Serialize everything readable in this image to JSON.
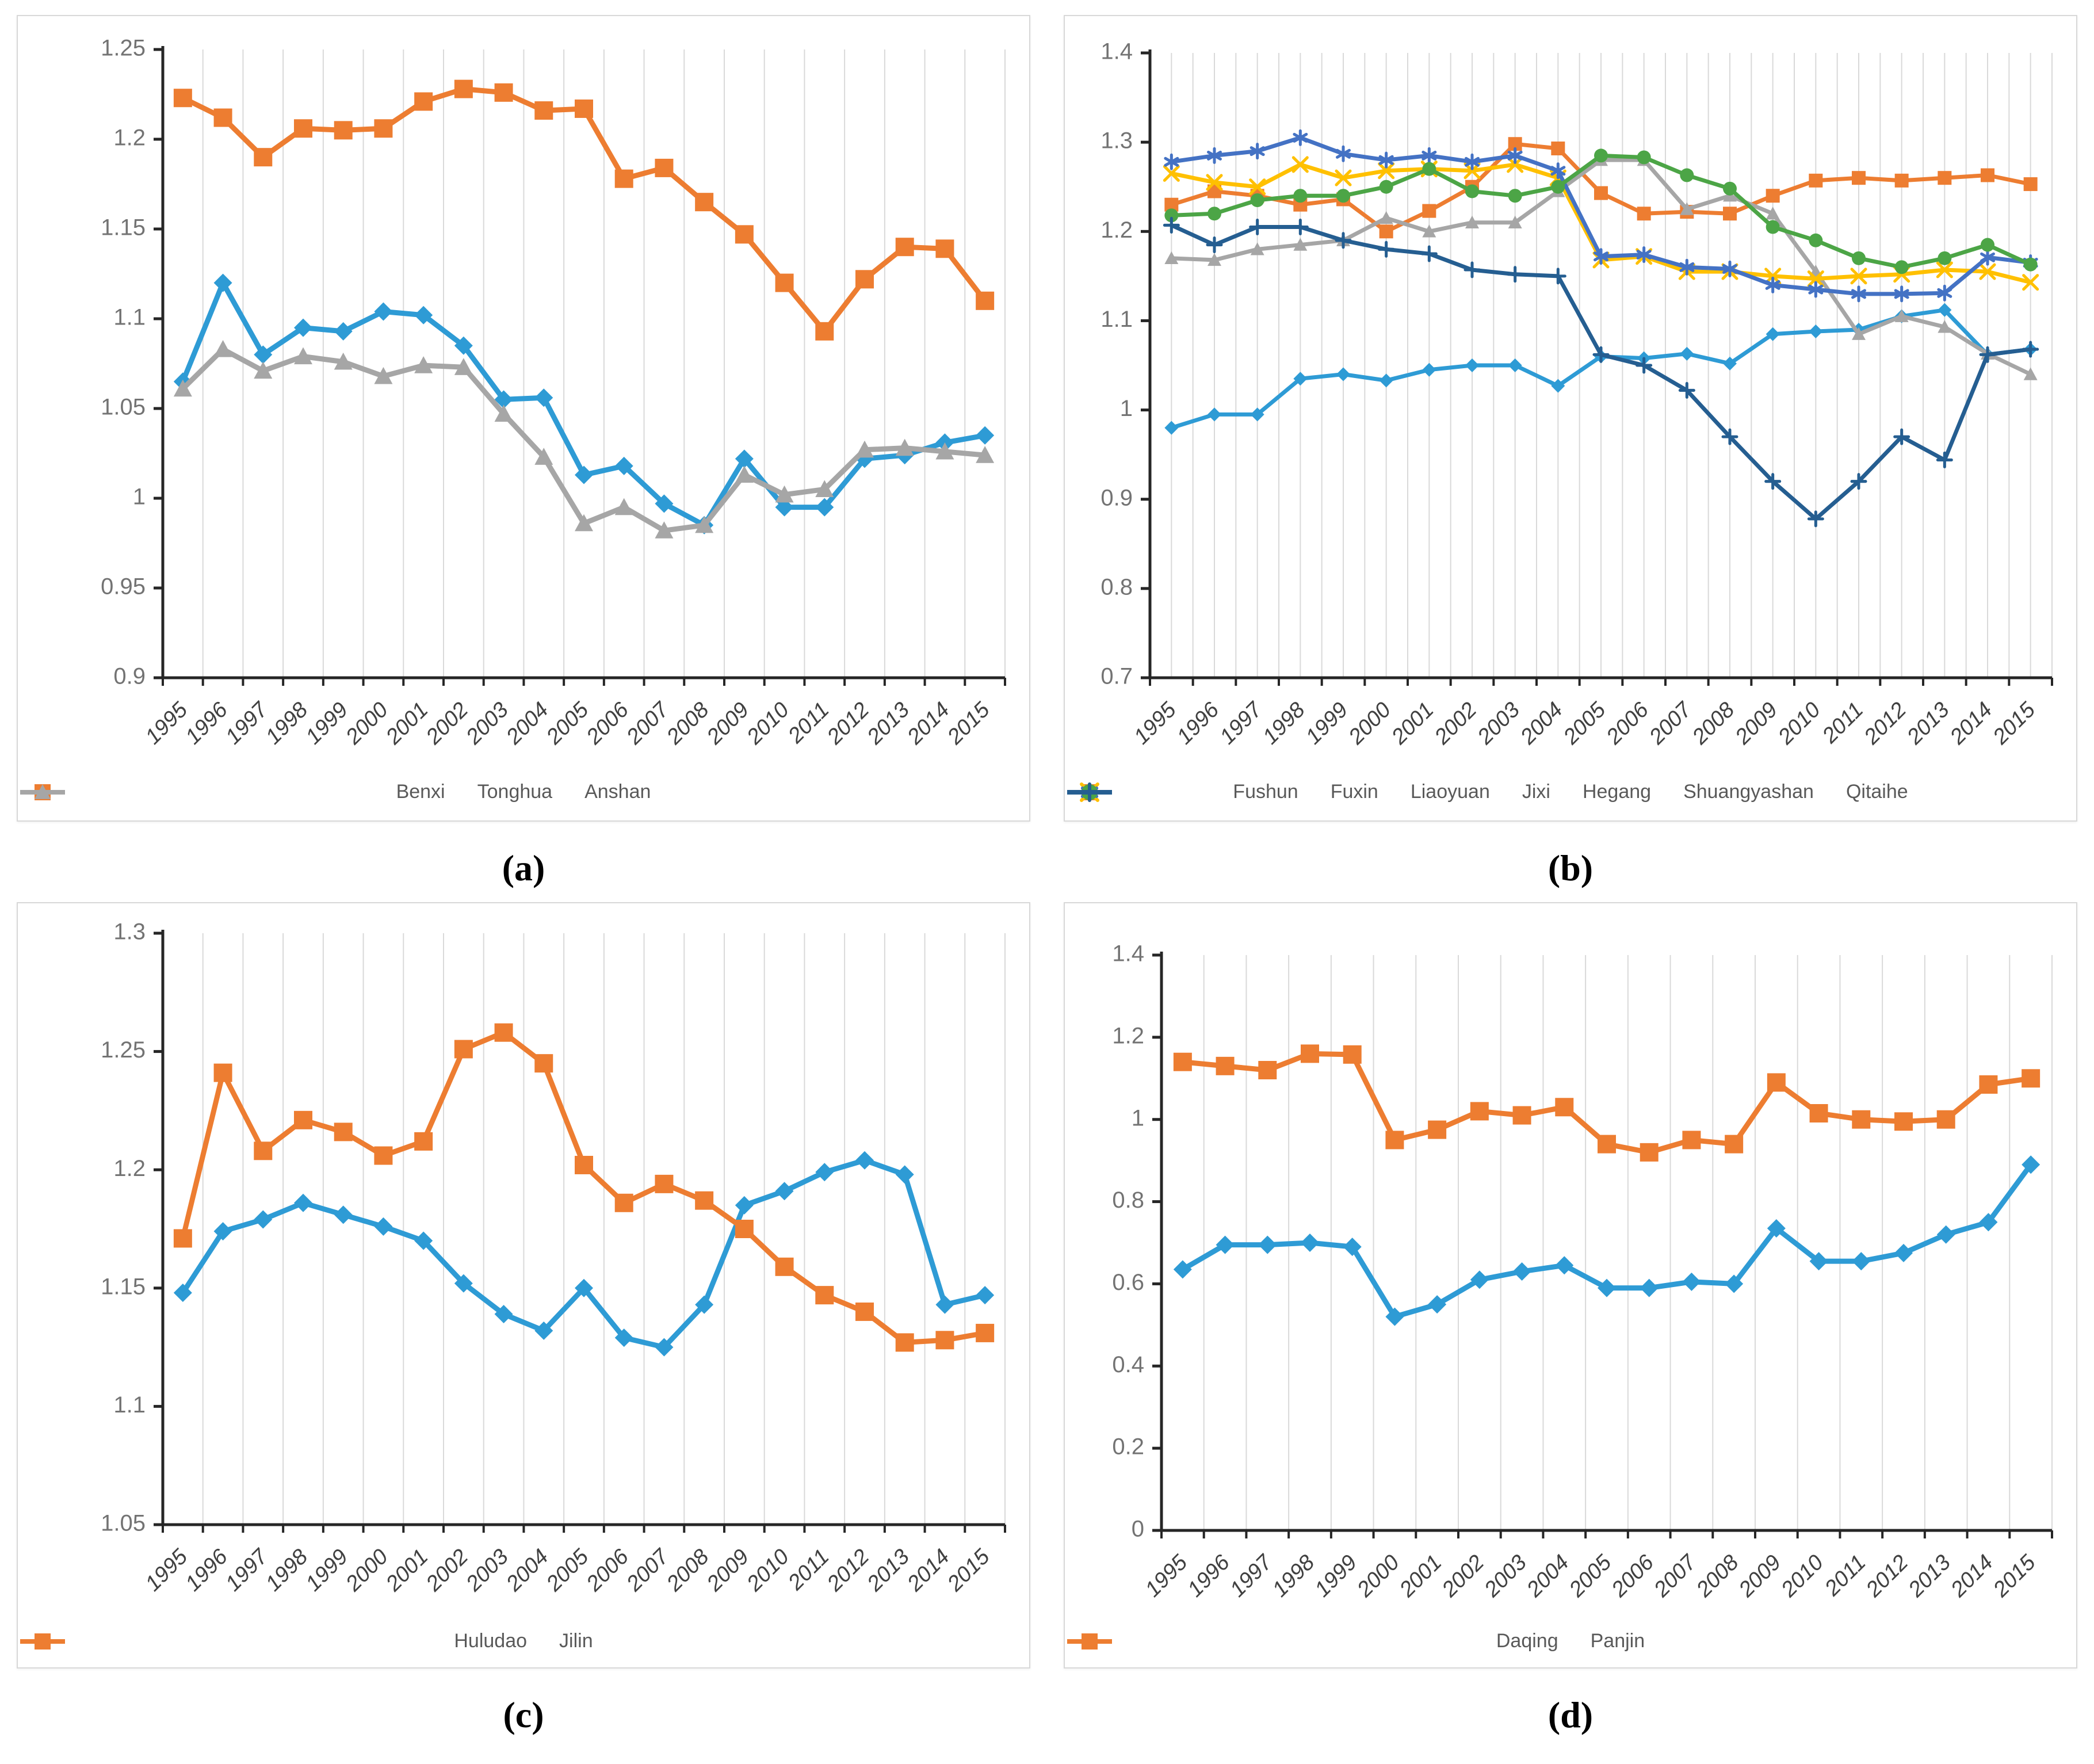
{
  "figure": {
    "captions": {
      "a": "(a)",
      "b": "(b)",
      "c": "(c)",
      "d": "(d)"
    }
  },
  "colors": {
    "bright_blue": "#2E9BD5",
    "orange": "#ED7D31",
    "gray": "#A6A6A6",
    "yellow": "#FFC000",
    "medium_blue": "#4472C4",
    "green": "#4CA546",
    "navy": "#255E91",
    "gridline": "#D9D9D9",
    "axis": "#262626"
  },
  "chart_data": [
    {
      "id": "a",
      "caption": "(a)",
      "type": "line",
      "categories": [
        "1995",
        "1996",
        "1997",
        "1998",
        "1999",
        "2000",
        "2001",
        "2002",
        "2003",
        "2004",
        "2005",
        "2006",
        "2007",
        "2008",
        "2009",
        "2010",
        "2011",
        "2012",
        "2013",
        "2014",
        "2015"
      ],
      "ylim": [
        0.9,
        1.25
      ],
      "yticks": [
        {
          "value": 1.25,
          "label": "1.25"
        },
        {
          "value": 1.2,
          "label": "1.2"
        },
        {
          "value": 1.15,
          "label": "1.15"
        },
        {
          "value": 1.1,
          "label": "1.1"
        },
        {
          "value": 1.05,
          "label": "1.05"
        },
        {
          "value": 1.0,
          "label": "1"
        },
        {
          "value": 0.95,
          "label": "0.95"
        },
        {
          "value": 0.9,
          "label": "0.9"
        }
      ],
      "minor_x_gridlines": false,
      "legend_position": "bottom",
      "series": [
        {
          "name": "Benxi",
          "color": "bright_blue",
          "marker": "diamond",
          "values": [
            1.065,
            1.12,
            1.08,
            1.095,
            1.093,
            1.104,
            1.102,
            1.085,
            1.055,
            1.056,
            1.013,
            1.018,
            0.997,
            0.985,
            1.022,
            0.995,
            0.995,
            1.022,
            1.024,
            1.031,
            1.035
          ]
        },
        {
          "name": "Tonghua",
          "color": "orange",
          "marker": "square",
          "values": [
            1.223,
            1.212,
            1.19,
            1.206,
            1.205,
            1.206,
            1.221,
            1.228,
            1.226,
            1.216,
            1.217,
            1.178,
            1.184,
            1.165,
            1.147,
            1.12,
            1.093,
            1.122,
            1.14,
            1.139,
            1.11
          ]
        },
        {
          "name": "Anshan",
          "color": "gray",
          "marker": "triangle",
          "values": [
            1.061,
            1.083,
            1.071,
            1.079,
            1.076,
            1.068,
            1.074,
            1.073,
            1.047,
            1.023,
            0.986,
            0.995,
            0.982,
            0.985,
            1.013,
            1.002,
            1.005,
            1.027,
            1.028,
            1.026,
            1.024
          ]
        }
      ]
    },
    {
      "id": "b",
      "caption": "(b)",
      "type": "line",
      "categories": [
        "1995",
        "1996",
        "1997",
        "1998",
        "1999",
        "2000",
        "2001",
        "2002",
        "2003",
        "2004",
        "2005",
        "2006",
        "2007",
        "2008",
        "2009",
        "2010",
        "2011",
        "2012",
        "2013",
        "2014",
        "2015"
      ],
      "ylim": [
        0.7,
        1.4
      ],
      "yticks": [
        {
          "value": 1.4,
          "label": "1.4"
        },
        {
          "value": 1.3,
          "label": "1.3"
        },
        {
          "value": 1.2,
          "label": "1.2"
        },
        {
          "value": 1.1,
          "label": "1.1"
        },
        {
          "value": 1.0,
          "label": "1"
        },
        {
          "value": 0.9,
          "label": "0.9"
        },
        {
          "value": 0.8,
          "label": "0.8"
        },
        {
          "value": 0.7,
          "label": "0.7"
        }
      ],
      "minor_x_gridlines": true,
      "legend_position": "bottom",
      "series": [
        {
          "name": "Fushun",
          "color": "bright_blue",
          "marker": "diamond",
          "values": [
            0.98,
            0.995,
            0.995,
            1.035,
            1.04,
            1.033,
            1.045,
            1.05,
            1.05,
            1.027,
            1.06,
            1.058,
            1.063,
            1.052,
            1.085,
            1.088,
            1.09,
            1.105,
            1.112,
            1.062,
            1.068
          ]
        },
        {
          "name": "Fuxin",
          "color": "orange",
          "marker": "square",
          "values": [
            1.23,
            1.245,
            1.24,
            1.23,
            1.236,
            1.2,
            1.223,
            1.25,
            1.298,
            1.293,
            1.243,
            1.22,
            1.222,
            1.22,
            1.24,
            1.257,
            1.26,
            1.257,
            1.26,
            1.263,
            1.253
          ]
        },
        {
          "name": "Liaoyuan",
          "color": "gray",
          "marker": "triangle",
          "values": [
            1.17,
            1.168,
            1.18,
            1.185,
            1.19,
            1.215,
            1.2,
            1.21,
            1.21,
            1.245,
            1.28,
            1.28,
            1.225,
            1.24,
            1.22,
            1.155,
            1.085,
            1.105,
            1.093,
            1.063,
            1.04
          ]
        },
        {
          "name": "Jixi",
          "color": "yellow",
          "marker": "x",
          "values": [
            1.265,
            1.255,
            1.25,
            1.275,
            1.26,
            1.268,
            1.27,
            1.268,
            1.275,
            1.26,
            1.168,
            1.172,
            1.155,
            1.155,
            1.15,
            1.147,
            1.15,
            1.152,
            1.157,
            1.155,
            1.143
          ]
        },
        {
          "name": "Hegang",
          "color": "medium_blue",
          "marker": "asterisk",
          "values": [
            1.278,
            1.285,
            1.29,
            1.305,
            1.287,
            1.28,
            1.285,
            1.278,
            1.285,
            1.268,
            1.172,
            1.174,
            1.16,
            1.158,
            1.14,
            1.135,
            1.13,
            1.13,
            1.131,
            1.171,
            1.165
          ]
        },
        {
          "name": "Shuangyashan",
          "color": "green",
          "marker": "circle",
          "values": [
            1.218,
            1.22,
            1.235,
            1.24,
            1.24,
            1.25,
            1.27,
            1.245,
            1.24,
            1.25,
            1.285,
            1.283,
            1.263,
            1.248,
            1.205,
            1.19,
            1.17,
            1.16,
            1.17,
            1.185,
            1.163
          ]
        },
        {
          "name": "Qitaihe",
          "color": "navy",
          "marker": "plus",
          "values": [
            1.207,
            1.185,
            1.205,
            1.205,
            1.19,
            1.18,
            1.175,
            1.157,
            1.152,
            1.15,
            1.062,
            1.05,
            1.022,
            0.97,
            0.92,
            0.878,
            0.92,
            0.97,
            0.944,
            1.062,
            1.068
          ]
        }
      ]
    },
    {
      "id": "c",
      "caption": "(c)",
      "type": "line",
      "categories": [
        "1995",
        "1996",
        "1997",
        "1998",
        "1999",
        "2000",
        "2001",
        "2002",
        "2003",
        "2004",
        "2005",
        "2006",
        "2007",
        "2008",
        "2009",
        "2010",
        "2011",
        "2012",
        "2013",
        "2014",
        "2015"
      ],
      "ylim": [
        1.05,
        1.3
      ],
      "yticks": [
        {
          "value": 1.3,
          "label": "1.3"
        },
        {
          "value": 1.25,
          "label": "1.25"
        },
        {
          "value": 1.2,
          "label": "1.2"
        },
        {
          "value": 1.15,
          "label": "1.15"
        },
        {
          "value": 1.1,
          "label": "1.1"
        },
        {
          "value": 1.05,
          "label": "1.05"
        }
      ],
      "minor_x_gridlines": false,
      "legend_position": "bottom",
      "series": [
        {
          "name": "Huludao",
          "color": "bright_blue",
          "marker": "diamond",
          "values": [
            1.148,
            1.174,
            1.179,
            1.186,
            1.181,
            1.176,
            1.17,
            1.152,
            1.139,
            1.132,
            1.15,
            1.129,
            1.125,
            1.143,
            1.185,
            1.191,
            1.199,
            1.204,
            1.198,
            1.143,
            1.147
          ]
        },
        {
          "name": "Jilin",
          "color": "orange",
          "marker": "square",
          "values": [
            1.171,
            1.241,
            1.208,
            1.221,
            1.216,
            1.206,
            1.212,
            1.251,
            1.258,
            1.245,
            1.202,
            1.186,
            1.194,
            1.187,
            1.175,
            1.159,
            1.147,
            1.14,
            1.127,
            1.128,
            1.131
          ]
        }
      ]
    },
    {
      "id": "d",
      "caption": "(d)",
      "type": "line",
      "categories": [
        "1995",
        "1996",
        "1997",
        "1998",
        "1999",
        "2000",
        "2001",
        "2002",
        "2003",
        "2004",
        "2005",
        "2006",
        "2007",
        "2008",
        "2009",
        "2010",
        "2011",
        "2012",
        "2013",
        "2014",
        "2015"
      ],
      "ylim": [
        0,
        1.4
      ],
      "yticks": [
        {
          "value": 1.4,
          "label": "1.4"
        },
        {
          "value": 1.2,
          "label": "1.2"
        },
        {
          "value": 1.0,
          "label": "1"
        },
        {
          "value": 0.8,
          "label": "0.8"
        },
        {
          "value": 0.6,
          "label": "0.6"
        },
        {
          "value": 0.4,
          "label": "0.4"
        },
        {
          "value": 0.2,
          "label": "0.2"
        },
        {
          "value": 0.0,
          "label": "0"
        }
      ],
      "minor_x_gridlines": false,
      "legend_position": "bottom",
      "series": [
        {
          "name": "Daqing",
          "color": "bright_blue",
          "marker": "diamond",
          "values": [
            0.635,
            0.695,
            0.695,
            0.7,
            0.69,
            0.52,
            0.55,
            0.61,
            0.63,
            0.645,
            0.59,
            0.59,
            0.605,
            0.6,
            0.735,
            0.655,
            0.655,
            0.675,
            0.72,
            0.75,
            0.89
          ]
        },
        {
          "name": "Panjin",
          "color": "orange",
          "marker": "square",
          "values": [
            1.14,
            1.13,
            1.12,
            1.16,
            1.158,
            0.95,
            0.975,
            1.02,
            1.01,
            1.03,
            0.94,
            0.92,
            0.95,
            0.94,
            1.09,
            1.015,
            1.0,
            0.995,
            1.0,
            1.085,
            1.1
          ]
        }
      ]
    }
  ]
}
